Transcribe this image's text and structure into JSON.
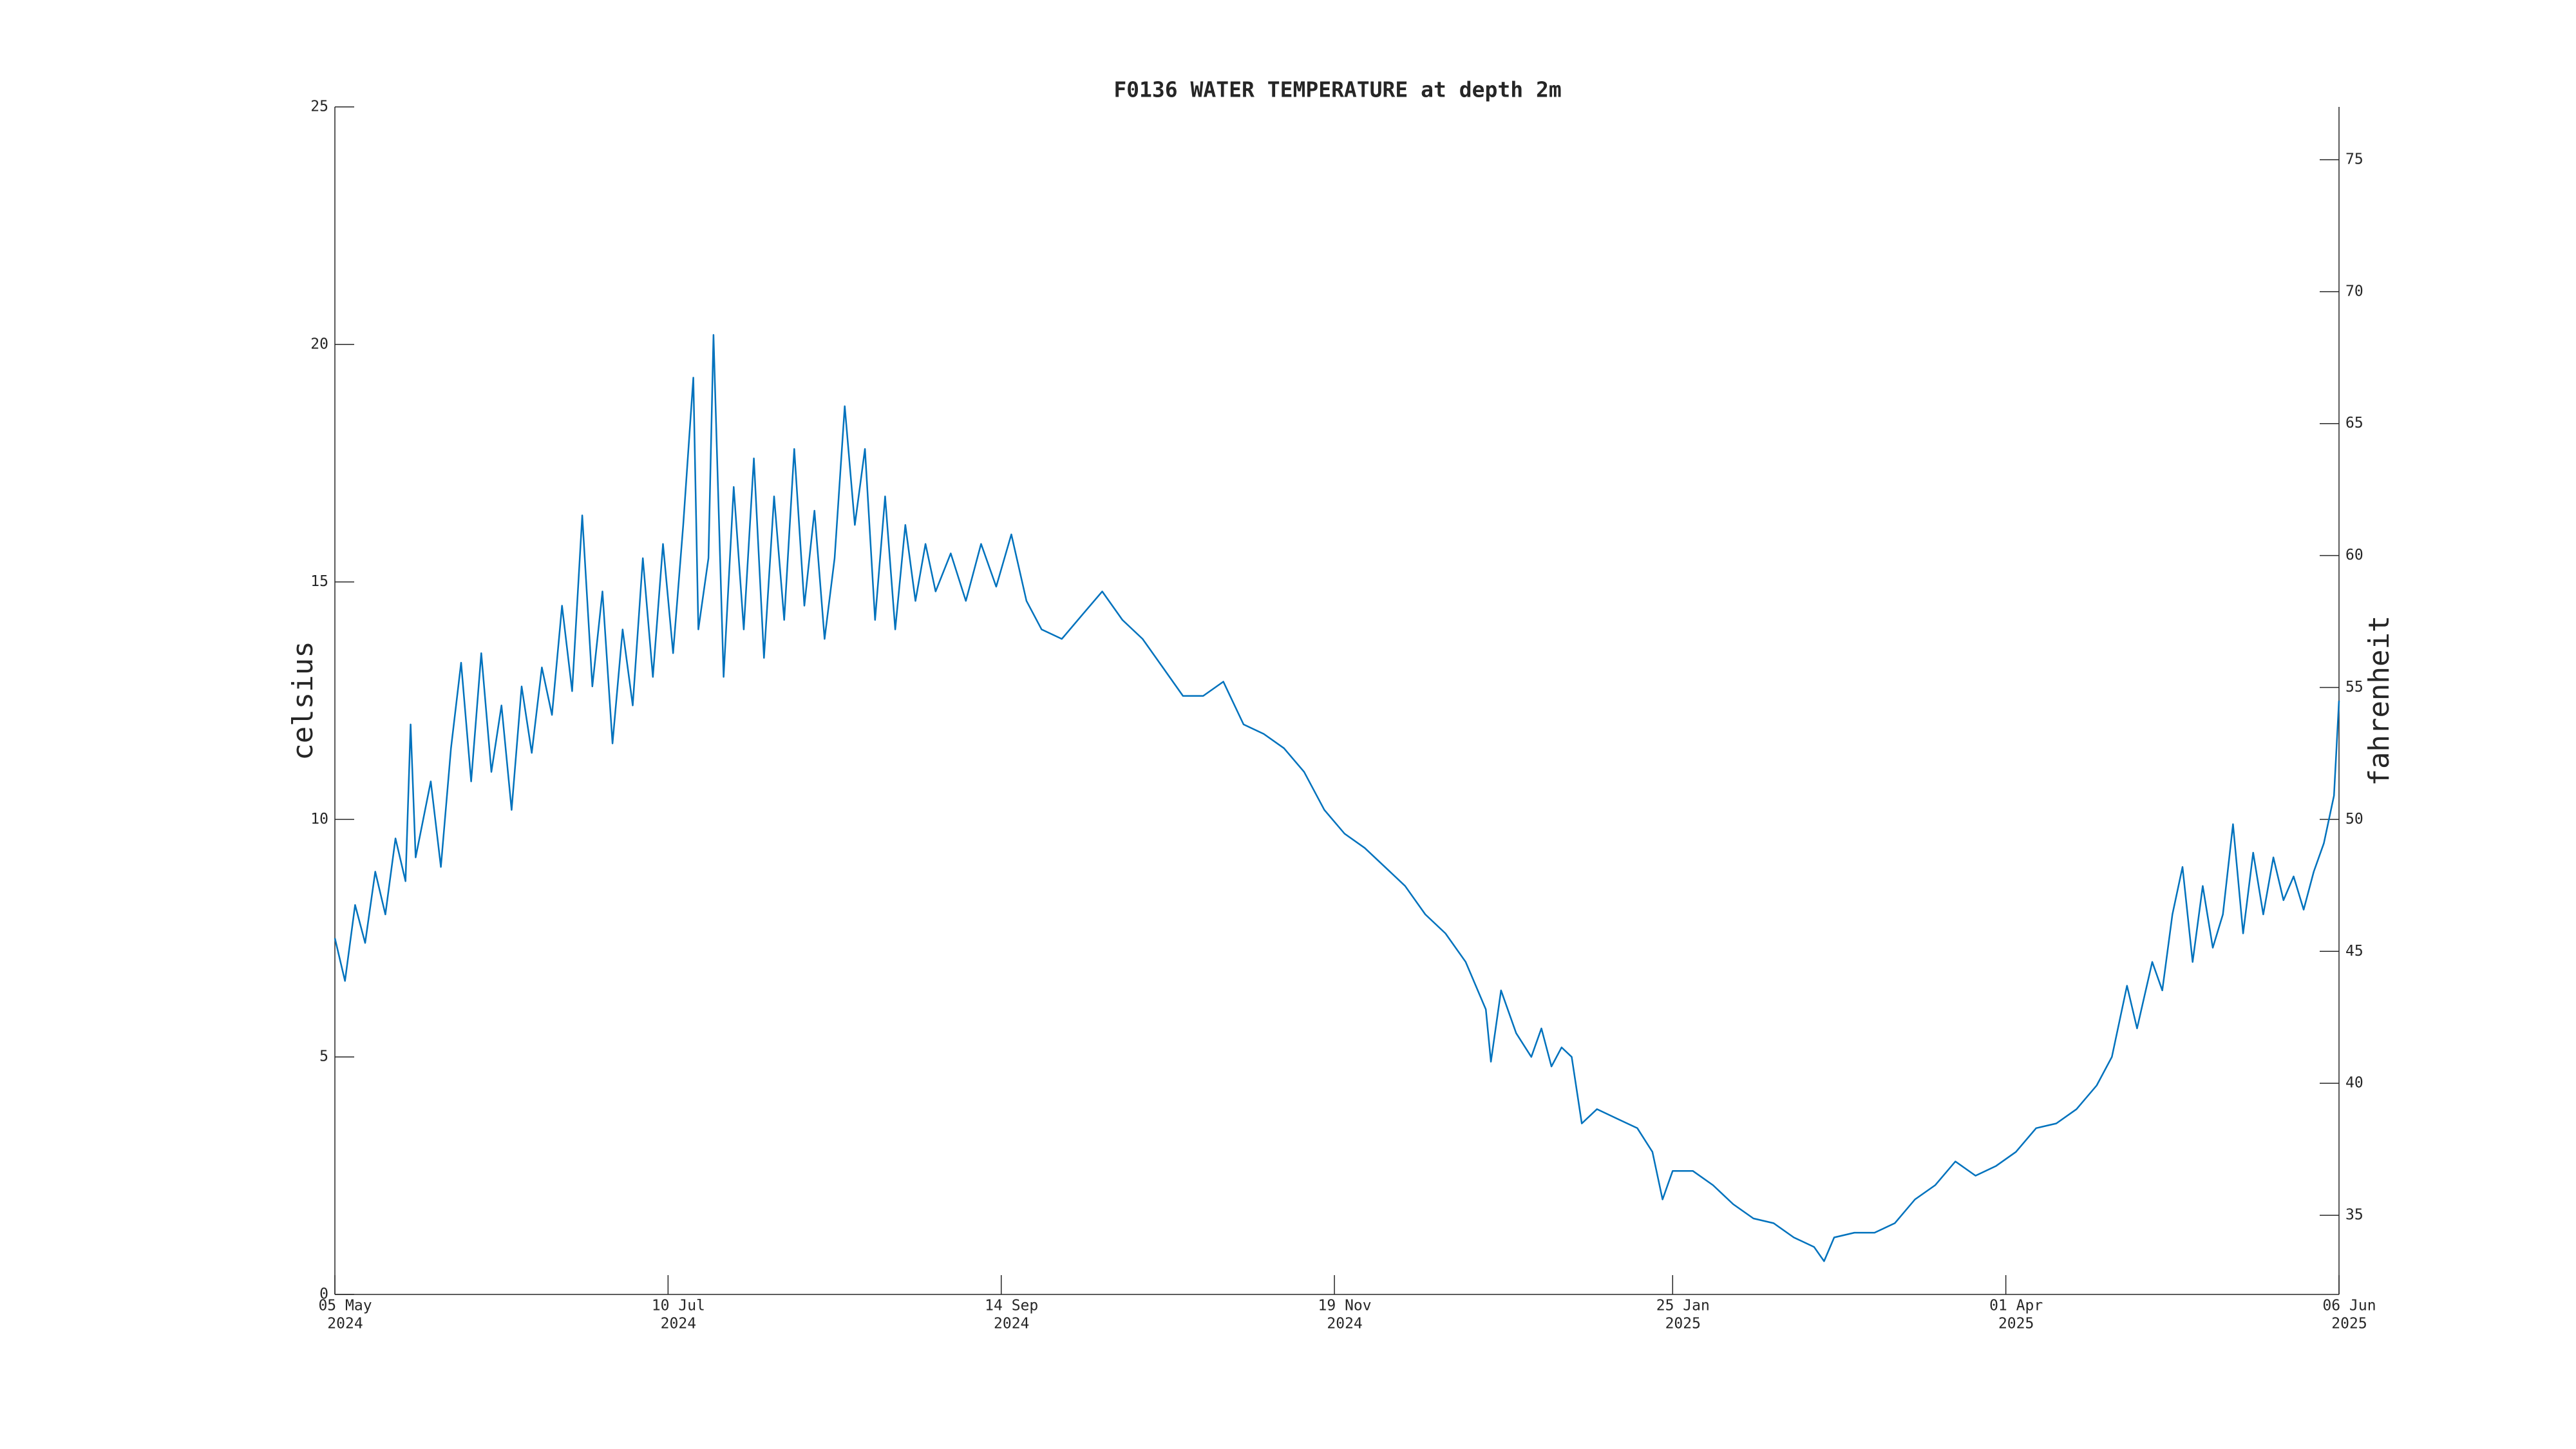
{
  "chart_data": {
    "type": "line",
    "title": "F0136 WATER TEMPERATURE at depth 2m",
    "ylabel": "celsius",
    "y2label": "fahrenheit",
    "color": "#0072bd",
    "xlim": [
      "2024-05-05",
      "2025-06-06"
    ],
    "xticks": [
      {
        "value": "2024-05-05",
        "label": [
          "05 May",
          "2024"
        ]
      },
      {
        "value": "2024-07-10",
        "label": [
          "10 Jul",
          "2024"
        ]
      },
      {
        "value": "2024-09-14",
        "label": [
          "14 Sep",
          "2024"
        ]
      },
      {
        "value": "2024-11-19",
        "label": [
          "19 Nov",
          "2024"
        ]
      },
      {
        "value": "2025-01-25",
        "label": [
          "25 Jan",
          "2025"
        ]
      },
      {
        "value": "2025-04-01",
        "label": [
          "01 Apr",
          "2025"
        ]
      },
      {
        "value": "2025-06-06",
        "label": [
          "06 Jun",
          "2025"
        ]
      }
    ],
    "ylim": [
      0,
      25
    ],
    "yticks": [
      0,
      5,
      10,
      15,
      20,
      25
    ],
    "y2lim": [
      32,
      77
    ],
    "y2ticks": [
      35,
      40,
      45,
      50,
      55,
      60,
      65,
      70,
      75
    ],
    "x": [
      "2024-05-05",
      "2024-05-07",
      "2024-05-09",
      "2024-05-11",
      "2024-05-13",
      "2024-05-15",
      "2024-05-17",
      "2024-05-19",
      "2024-05-20",
      "2024-05-21",
      "2024-05-24",
      "2024-05-26",
      "2024-05-28",
      "2024-05-30",
      "2024-06-01",
      "2024-06-03",
      "2024-06-05",
      "2024-06-07",
      "2024-06-09",
      "2024-06-11",
      "2024-06-13",
      "2024-06-15",
      "2024-06-17",
      "2024-06-19",
      "2024-06-21",
      "2024-06-23",
      "2024-06-25",
      "2024-06-27",
      "2024-06-29",
      "2024-07-01",
      "2024-07-03",
      "2024-07-05",
      "2024-07-07",
      "2024-07-09",
      "2024-07-11",
      "2024-07-13",
      "2024-07-15",
      "2024-07-16",
      "2024-07-18",
      "2024-07-19",
      "2024-07-21",
      "2024-07-23",
      "2024-07-25",
      "2024-07-27",
      "2024-07-29",
      "2024-07-31",
      "2024-08-02",
      "2024-08-04",
      "2024-08-06",
      "2024-08-08",
      "2024-08-10",
      "2024-08-12",
      "2024-08-14",
      "2024-08-16",
      "2024-08-18",
      "2024-08-20",
      "2024-08-22",
      "2024-08-24",
      "2024-08-26",
      "2024-08-28",
      "2024-08-30",
      "2024-09-01",
      "2024-09-04",
      "2024-09-07",
      "2024-09-10",
      "2024-09-13",
      "2024-09-16",
      "2024-09-19",
      "2024-09-22",
      "2024-09-26",
      "2024-09-30",
      "2024-10-04",
      "2024-10-08",
      "2024-10-12",
      "2024-10-16",
      "2024-10-20",
      "2024-10-24",
      "2024-10-28",
      "2024-11-01",
      "2024-11-05",
      "2024-11-09",
      "2024-11-13",
      "2024-11-17",
      "2024-11-21",
      "2024-11-25",
      "2024-11-29",
      "2024-12-03",
      "2024-12-07",
      "2024-12-11",
      "2024-12-15",
      "2024-12-19",
      "2024-12-20",
      "2024-12-22",
      "2024-12-25",
      "2024-12-28",
      "2024-12-30",
      "2025-01-01",
      "2025-01-03",
      "2025-01-05",
      "2025-01-07",
      "2025-01-10",
      "2025-01-14",
      "2025-01-18",
      "2025-01-21",
      "2025-01-23",
      "2025-01-25",
      "2025-01-29",
      "2025-02-02",
      "2025-02-06",
      "2025-02-10",
      "2025-02-14",
      "2025-02-18",
      "2025-02-22",
      "2025-02-24",
      "2025-02-26",
      "2025-03-02",
      "2025-03-06",
      "2025-03-10",
      "2025-03-14",
      "2025-03-18",
      "2025-03-22",
      "2025-03-26",
      "2025-03-30",
      "2025-04-03",
      "2025-04-07",
      "2025-04-11",
      "2025-04-15",
      "2025-04-19",
      "2025-04-22",
      "2025-04-25",
      "2025-04-27",
      "2025-04-30",
      "2025-05-02",
      "2025-05-04",
      "2025-05-06",
      "2025-05-08",
      "2025-05-10",
      "2025-05-12",
      "2025-05-14",
      "2025-05-16",
      "2025-05-18",
      "2025-05-20",
      "2025-05-22",
      "2025-05-24",
      "2025-05-26",
      "2025-05-28",
      "2025-05-30",
      "2025-06-01",
      "2025-06-03",
      "2025-06-05",
      "2025-06-06"
    ],
    "values": [
      7.5,
      6.6,
      8.2,
      7.4,
      8.9,
      8.0,
      9.6,
      8.7,
      12.0,
      9.2,
      10.8,
      9.0,
      11.5,
      13.3,
      10.8,
      13.5,
      11.0,
      12.4,
      10.2,
      12.8,
      11.4,
      13.2,
      12.2,
      14.5,
      12.7,
      16.4,
      12.8,
      14.8,
      11.6,
      14.0,
      12.4,
      15.5,
      13.0,
      15.8,
      13.5,
      16.2,
      19.3,
      14.0,
      15.5,
      20.2,
      13.0,
      17.0,
      14.0,
      17.6,
      13.4,
      16.8,
      14.2,
      17.8,
      14.5,
      16.5,
      13.8,
      15.5,
      18.7,
      16.2,
      17.8,
      14.2,
      16.8,
      14.0,
      16.2,
      14.6,
      15.8,
      14.8,
      15.6,
      14.6,
      15.8,
      14.9,
      16.0,
      14.6,
      14.0,
      13.8,
      14.3,
      14.8,
      14.2,
      13.8,
      13.2,
      12.6,
      12.6,
      12.9,
      12.0,
      11.8,
      11.5,
      11.0,
      10.2,
      9.7,
      9.4,
      9.0,
      8.6,
      8.0,
      7.6,
      7.0,
      6.0,
      4.9,
      6.4,
      5.5,
      5.0,
      5.6,
      4.8,
      5.2,
      5.0,
      3.6,
      3.9,
      3.7,
      3.5,
      3.0,
      2.0,
      2.6,
      2.6,
      2.3,
      1.9,
      1.6,
      1.5,
      1.2,
      1.0,
      0.7,
      1.2,
      1.3,
      1.3,
      1.5,
      2.0,
      2.3,
      2.8,
      2.5,
      2.7,
      3.0,
      3.5,
      3.6,
      3.9,
      4.4,
      5.0,
      6.5,
      5.6,
      7.0,
      6.4,
      8.0,
      9.0,
      7.0,
      8.6,
      7.3,
      8.0,
      9.9,
      7.6,
      9.3,
      8.0,
      9.2,
      8.3,
      8.8,
      8.1,
      8.9,
      9.5,
      10.5,
      12.5
    ]
  }
}
